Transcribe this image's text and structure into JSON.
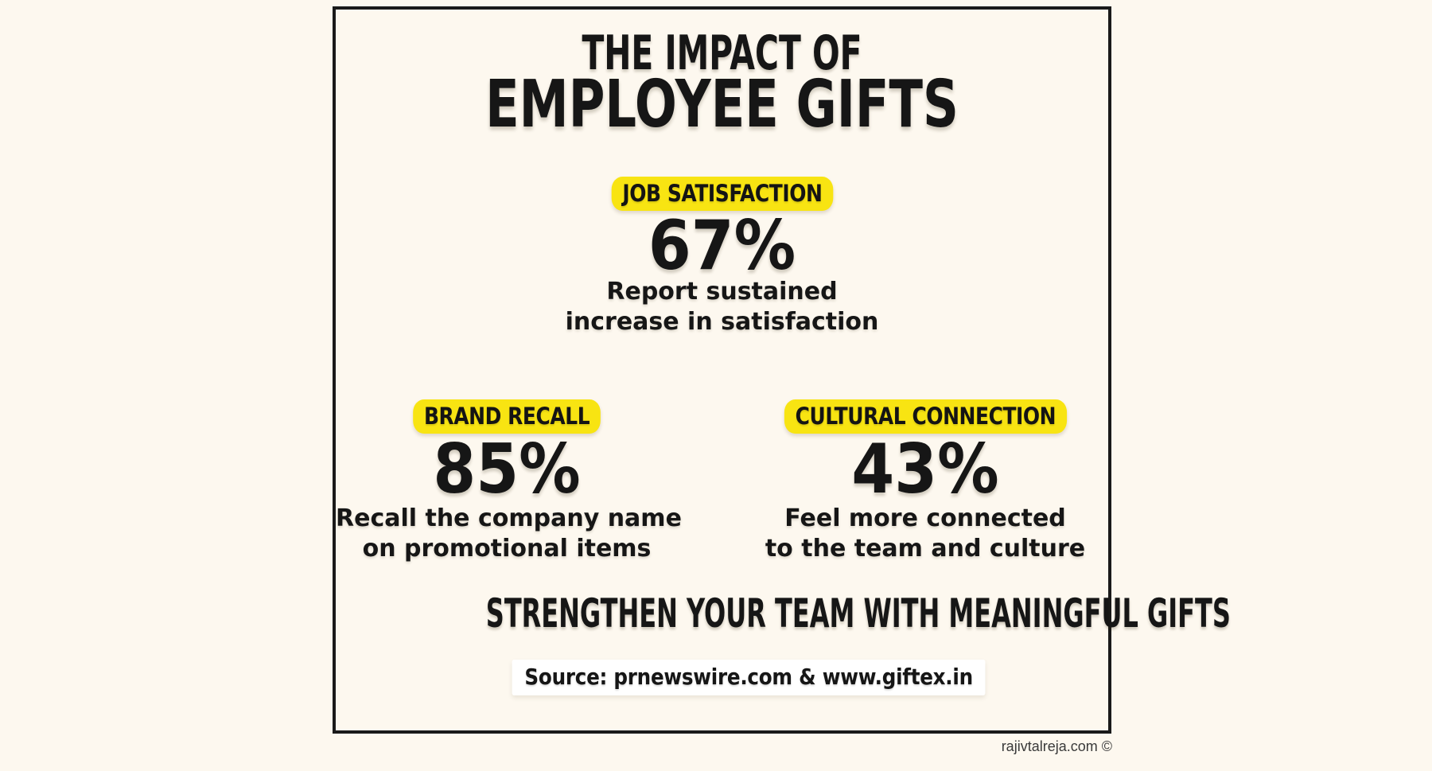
{
  "chart_data": {
    "type": "table",
    "title": "THE IMPACT OF EMPLOYEE GIFTS",
    "categories": [
      "JOB SATISFACTION",
      "BRAND RECALL",
      "CULTURAL CONNECTION"
    ],
    "values": [
      67,
      85,
      43
    ],
    "value_unit": "%",
    "value_descriptions": [
      "Report sustained increase in satisfaction",
      "Recall the company name on promotional items",
      "Feel more connected to the team and culture"
    ],
    "annotations": [
      "STRENGTHEN YOUR TEAM WITH MEANINGFUL GIFTS",
      "Source: prnewswire.com & www.giftex.in",
      "rajivtalreja.com ©"
    ],
    "legend_position": "none",
    "grid": false
  },
  "infographic": {
    "title_line1": "THE IMPACT OF",
    "title_line2": "EMPLOYEE GIFTS",
    "stats": [
      {
        "label": "JOB SATISFACTION",
        "value": "67%",
        "desc_line1": "Report sustained",
        "desc_line2": "increase in satisfaction"
      },
      {
        "label": "BRAND RECALL",
        "value": "85%",
        "desc_line1": "Recall the company name",
        "desc_line2": "on promotional items"
      },
      {
        "label": "CULTURAL CONNECTION",
        "value": "43%",
        "desc_line1": "Feel more connected",
        "desc_line2": "to the team and culture"
      }
    ],
    "tagline": "STRENGTHEN YOUR TEAM WITH MEANINGFUL GIFTS",
    "source": "Source: prnewswire.com & www.giftex.in",
    "watermark": "rajivtalreja.com ©",
    "colors": {
      "background": "#FDF8EF",
      "frame_border": "#1A1A1A",
      "highlight_yellow": "#F8E412",
      "text": "#161616",
      "source_background": "#FFFFFF"
    }
  }
}
